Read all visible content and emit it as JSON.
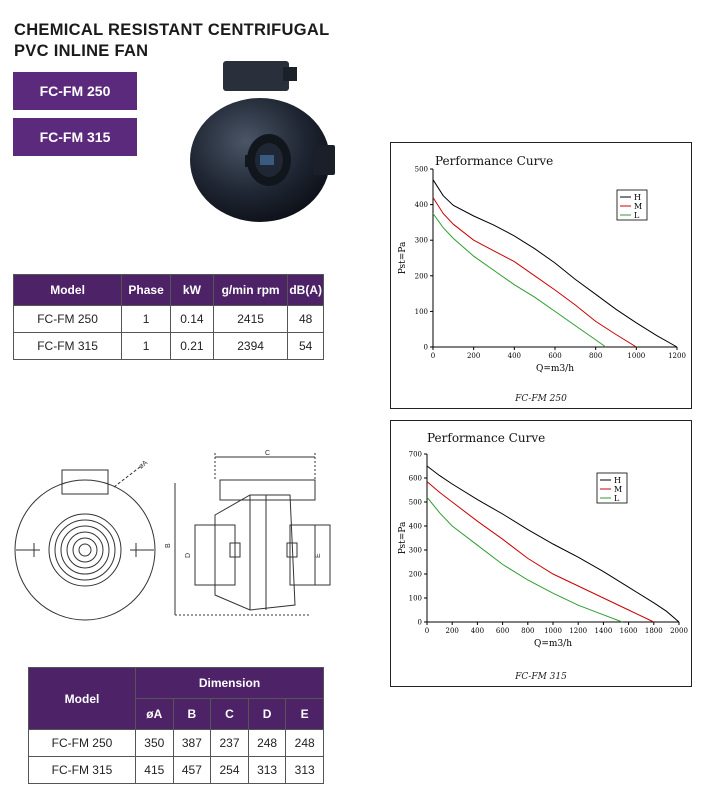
{
  "title_line1": "CHEMICAL RESISTANT CENTRIFUGAL",
  "title_line2": "PVC INLINE FAN",
  "models": [
    "FC-FM 250",
    "FC-FM 315"
  ],
  "spec_table": {
    "headers": [
      "Model",
      "Phase",
      "kW",
      "g/min rpm",
      "dB(A)"
    ],
    "rows": [
      [
        "FC-FM 250",
        "1",
        "0.14",
        "2415",
        "48"
      ],
      [
        "FC-FM 315",
        "1",
        "0.21",
        "2394",
        "54"
      ]
    ]
  },
  "dim_table": {
    "model_header": "Model",
    "group_header": "Dimension",
    "headers": [
      "øA",
      "B",
      "C",
      "D",
      "E"
    ],
    "rows": [
      [
        "FC-FM 250",
        "350",
        "387",
        "237",
        "248",
        "248"
      ],
      [
        "FC-FM 315",
        "415",
        "457",
        "254",
        "313",
        "313"
      ]
    ]
  },
  "drawing_labels": {
    "a": "øA",
    "b": "B",
    "c": "C",
    "d": "D",
    "e": "E"
  },
  "chart_data": [
    {
      "type": "line",
      "title": "Performance Curve",
      "caption": "FC-FM 250",
      "xlabel": "Q=m3/h",
      "ylabel": "Pst=Pa",
      "xlim": [
        0,
        1200
      ],
      "ylim": [
        0,
        500
      ],
      "xticks": [
        0,
        200,
        400,
        600,
        800,
        1000,
        1200
      ],
      "yticks": [
        0,
        100,
        200,
        300,
        400,
        500
      ],
      "legend": "top-right",
      "series": [
        {
          "name": "H",
          "color": "#000000",
          "x": [
            0,
            50,
            100,
            200,
            300,
            400,
            500,
            600,
            700,
            800,
            900,
            1000,
            1100,
            1200
          ],
          "y": [
            470,
            425,
            398,
            368,
            342,
            312,
            276,
            236,
            190,
            148,
            106,
            68,
            32,
            0
          ]
        },
        {
          "name": "M",
          "color": "#cc0000",
          "x": [
            0,
            50,
            100,
            200,
            300,
            400,
            500,
            600,
            700,
            800,
            900,
            1000
          ],
          "y": [
            420,
            375,
            345,
            300,
            270,
            240,
            200,
            160,
            118,
            72,
            35,
            0
          ]
        },
        {
          "name": "L",
          "color": "#2e9e2e",
          "x": [
            0,
            50,
            100,
            200,
            300,
            400,
            500,
            600,
            700,
            800,
            850
          ],
          "y": [
            375,
            335,
            305,
            255,
            215,
            175,
            140,
            100,
            60,
            20,
            0
          ]
        }
      ]
    },
    {
      "type": "line",
      "title": "Performance Curve",
      "caption": "FC-FM 315",
      "xlabel": "Q=m3/h",
      "ylabel": "Pst=Pa",
      "xlim": [
        0,
        2000
      ],
      "ylim": [
        0,
        700
      ],
      "xticks": [
        0,
        200,
        400,
        600,
        800,
        1000,
        1200,
        1400,
        1600,
        1800,
        2000
      ],
      "yticks": [
        0,
        100,
        200,
        300,
        400,
        500,
        600,
        700
      ],
      "legend": "top-right",
      "series": [
        {
          "name": "H",
          "color": "#000000",
          "x": [
            0,
            100,
            200,
            400,
            600,
            800,
            1000,
            1200,
            1400,
            1600,
            1800,
            1900,
            2000
          ],
          "y": [
            650,
            610,
            575,
            510,
            450,
            385,
            325,
            270,
            210,
            145,
            80,
            45,
            0
          ]
        },
        {
          "name": "M",
          "color": "#cc0000",
          "x": [
            0,
            100,
            200,
            400,
            600,
            800,
            1000,
            1200,
            1400,
            1600,
            1800
          ],
          "y": [
            585,
            540,
            500,
            420,
            345,
            265,
            200,
            150,
            100,
            50,
            0
          ]
        },
        {
          "name": "L",
          "color": "#2e9e2e",
          "x": [
            0,
            100,
            200,
            400,
            600,
            800,
            1000,
            1200,
            1400,
            1550
          ],
          "y": [
            520,
            455,
            400,
            320,
            240,
            175,
            120,
            70,
            30,
            0
          ]
        }
      ]
    }
  ]
}
